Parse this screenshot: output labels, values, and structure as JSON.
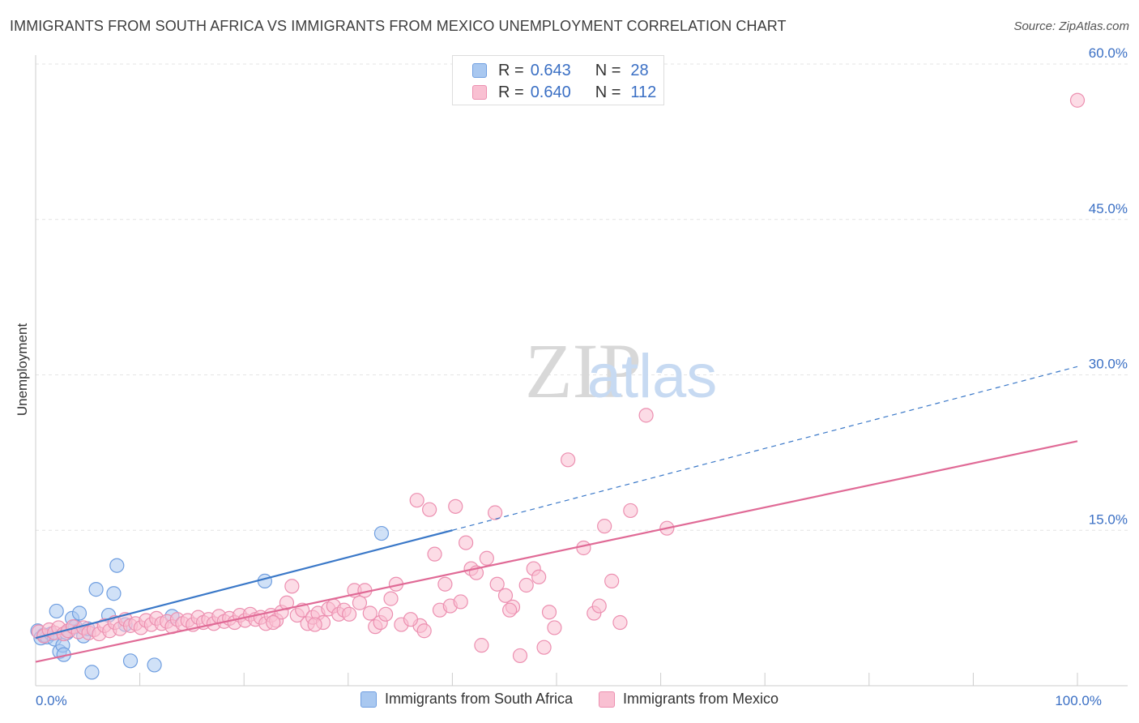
{
  "title": "IMMIGRANTS FROM SOUTH AFRICA VS IMMIGRANTS FROM MEXICO UNEMPLOYMENT CORRELATION CHART",
  "source": "Source: ZipAtlas.com",
  "watermark": {
    "zip": "ZIP",
    "atlas": "atlas"
  },
  "stats": [
    {
      "r_label": "R =",
      "r_value": "0.643",
      "n_label": "N =",
      "n_value": "28",
      "color": "#a9c8f0",
      "border": "#6f9ee0"
    },
    {
      "r_label": "R =",
      "r_value": "0.640",
      "n_label": "N =",
      "n_value": "112",
      "color": "#f9c0d2",
      "border": "#ec8fb0"
    }
  ],
  "legend": [
    {
      "label": "Immigrants from South Africa",
      "color": "#a9c8f0",
      "border": "#6f9ee0"
    },
    {
      "label": "Immigrants from Mexico",
      "color": "#f9c0d2",
      "border": "#ec8fb0"
    }
  ],
  "chart_data": {
    "type": "scatter",
    "xlabel": "",
    "ylabel": "Unemployment",
    "xlim": [
      0,
      100
    ],
    "ylim": [
      0,
      60
    ],
    "x_ticks": [
      {
        "value": 0,
        "label": "0.0%"
      },
      {
        "value": 100,
        "label": "100.0%"
      }
    ],
    "y_ticks": [
      {
        "value": 15,
        "label": "15.0%"
      },
      {
        "value": 30,
        "label": "30.0%"
      },
      {
        "value": 45,
        "label": "45.0%"
      },
      {
        "value": 60,
        "label": "60.0%"
      }
    ],
    "grid": true,
    "series": [
      {
        "name": "Immigrants from South Africa",
        "color": "#6f9ee0",
        "fill": "#a9c8f0",
        "line_color": "#3a78c8",
        "trend": {
          "x0": 0,
          "y0": 4.6,
          "x1": 40,
          "y1": 15.0,
          "dash_to_x": 100,
          "dash_to_y": 30.8
        },
        "points": [
          [
            0.2,
            5.3
          ],
          [
            0.5,
            4.6
          ],
          [
            0.8,
            4.9
          ],
          [
            1.1,
            4.7
          ],
          [
            1.5,
            5.0
          ],
          [
            1.8,
            4.5
          ],
          [
            2.0,
            7.2
          ],
          [
            2.3,
            3.3
          ],
          [
            2.6,
            3.9
          ],
          [
            2.7,
            3.0
          ],
          [
            3.0,
            5.1
          ],
          [
            3.2,
            5.3
          ],
          [
            3.5,
            6.5
          ],
          [
            3.8,
            5.7
          ],
          [
            4.2,
            7.0
          ],
          [
            4.6,
            4.8
          ],
          [
            5.0,
            5.5
          ],
          [
            5.4,
            1.3
          ],
          [
            5.8,
            9.3
          ],
          [
            7.0,
            6.8
          ],
          [
            7.5,
            8.9
          ],
          [
            7.8,
            11.6
          ],
          [
            8.6,
            5.9
          ],
          [
            9.1,
            2.4
          ],
          [
            11.4,
            2.0
          ],
          [
            13.1,
            6.7
          ],
          [
            22.0,
            10.1
          ],
          [
            33.2,
            14.7
          ]
        ]
      },
      {
        "name": "Immigrants from Mexico",
        "color": "#ec8fb0",
        "fill": "#f9c0d2",
        "line_color": "#e06a96",
        "trend": {
          "x0": 0,
          "y0": 2.3,
          "x1": 100,
          "y1": 23.6
        },
        "points": [
          [
            0.3,
            5.2
          ],
          [
            0.8,
            4.8
          ],
          [
            1.3,
            5.4
          ],
          [
            1.8,
            5.1
          ],
          [
            2.2,
            5.6
          ],
          [
            2.7,
            5.0
          ],
          [
            3.1,
            5.3
          ],
          [
            3.6,
            5.7
          ],
          [
            4.1,
            5.2
          ],
          [
            4.6,
            5.6
          ],
          [
            5.1,
            5.1
          ],
          [
            5.6,
            5.4
          ],
          [
            6.1,
            5.0
          ],
          [
            6.6,
            5.8
          ],
          [
            7.1,
            5.3
          ],
          [
            7.6,
            6.1
          ],
          [
            8.1,
            5.5
          ],
          [
            8.6,
            6.4
          ],
          [
            9.1,
            5.8
          ],
          [
            9.6,
            6.0
          ],
          [
            10.1,
            5.6
          ],
          [
            10.6,
            6.3
          ],
          [
            11.1,
            5.9
          ],
          [
            11.6,
            6.5
          ],
          [
            12.1,
            6.0
          ],
          [
            12.6,
            6.2
          ],
          [
            13.1,
            5.7
          ],
          [
            13.6,
            6.4
          ],
          [
            14.1,
            6.0
          ],
          [
            14.6,
            6.3
          ],
          [
            15.1,
            5.9
          ],
          [
            15.6,
            6.6
          ],
          [
            16.1,
            6.1
          ],
          [
            16.6,
            6.4
          ],
          [
            17.1,
            6.0
          ],
          [
            17.6,
            6.7
          ],
          [
            18.1,
            6.2
          ],
          [
            18.6,
            6.5
          ],
          [
            19.1,
            6.1
          ],
          [
            19.6,
            6.8
          ],
          [
            20.1,
            6.3
          ],
          [
            20.6,
            6.9
          ],
          [
            21.1,
            6.4
          ],
          [
            21.6,
            6.6
          ],
          [
            22.1,
            6.0
          ],
          [
            22.6,
            6.8
          ],
          [
            23.1,
            6.3
          ],
          [
            23.6,
            7.1
          ],
          [
            24.1,
            8.0
          ],
          [
            24.6,
            9.6
          ],
          [
            25.1,
            6.8
          ],
          [
            25.6,
            7.3
          ],
          [
            26.1,
            6.0
          ],
          [
            26.6,
            6.6
          ],
          [
            27.1,
            7.0
          ],
          [
            27.6,
            6.1
          ],
          [
            28.1,
            7.4
          ],
          [
            28.6,
            7.7
          ],
          [
            29.1,
            6.9
          ],
          [
            29.6,
            7.3
          ],
          [
            30.1,
            6.9
          ],
          [
            30.6,
            9.2
          ],
          [
            31.1,
            8.0
          ],
          [
            31.6,
            9.2
          ],
          [
            32.1,
            7.0
          ],
          [
            32.6,
            5.7
          ],
          [
            33.1,
            6.1
          ],
          [
            33.6,
            6.9
          ],
          [
            34.1,
            8.4
          ],
          [
            34.6,
            9.8
          ],
          [
            35.1,
            5.9
          ],
          [
            36.6,
            17.9
          ],
          [
            36.9,
            5.8
          ],
          [
            37.3,
            5.3
          ],
          [
            37.8,
            17.0
          ],
          [
            38.3,
            12.7
          ],
          [
            38.8,
            7.3
          ],
          [
            39.3,
            9.8
          ],
          [
            39.8,
            7.7
          ],
          [
            40.3,
            17.3
          ],
          [
            40.8,
            8.1
          ],
          [
            41.3,
            13.8
          ],
          [
            41.8,
            11.3
          ],
          [
            42.3,
            10.9
          ],
          [
            42.8,
            3.9
          ],
          [
            43.3,
            12.3
          ],
          [
            44.1,
            16.7
          ],
          [
            44.3,
            9.8
          ],
          [
            45.1,
            8.7
          ],
          [
            45.8,
            7.6
          ],
          [
            46.5,
            2.9
          ],
          [
            47.1,
            9.7
          ],
          [
            47.8,
            11.3
          ],
          [
            48.3,
            10.5
          ],
          [
            48.8,
            3.7
          ],
          [
            49.3,
            7.1
          ],
          [
            49.8,
            5.6
          ],
          [
            51.1,
            21.8
          ],
          [
            52.6,
            13.3
          ],
          [
            53.6,
            7.0
          ],
          [
            54.1,
            7.7
          ],
          [
            54.6,
            15.4
          ],
          [
            55.3,
            10.1
          ],
          [
            56.1,
            6.1
          ],
          [
            57.1,
            16.9
          ],
          [
            58.6,
            26.1
          ],
          [
            60.6,
            15.2
          ],
          [
            100.0,
            56.5
          ],
          [
            36.0,
            6.4
          ],
          [
            26.8,
            5.9
          ],
          [
            45.5,
            7.3
          ],
          [
            22.8,
            6.1
          ]
        ]
      }
    ]
  }
}
